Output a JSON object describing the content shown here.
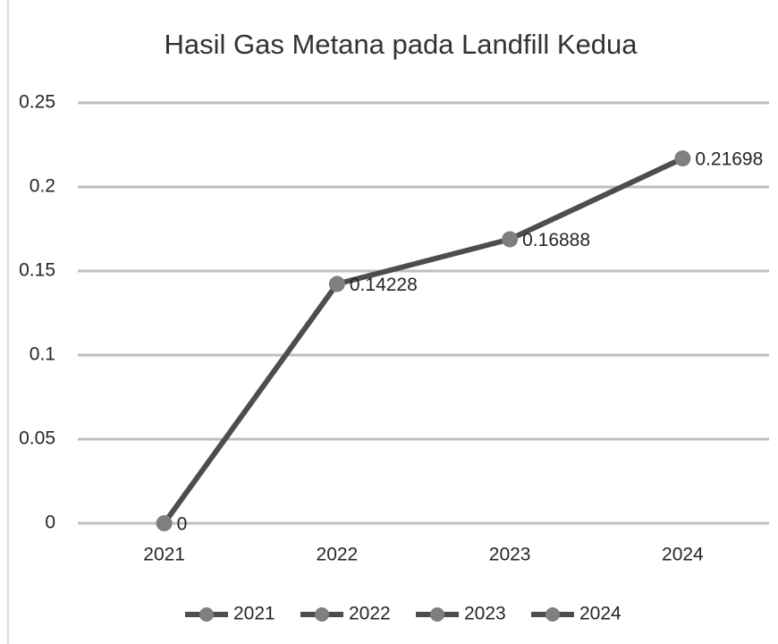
{
  "chart_data": {
    "type": "line",
    "title": "Hasil Gas Metana pada Landfill Kedua",
    "categories": [
      "2021",
      "2022",
      "2023",
      "2024"
    ],
    "values": [
      0,
      0.14228,
      0.16888,
      0.21698
    ],
    "line_color": "#4d4d4d",
    "marker_color": "#7f7f7f",
    "ylim": [
      0,
      0.25
    ],
    "yticks": [
      0,
      0.05,
      0.1,
      0.15,
      0.2,
      0.25
    ],
    "grid": true,
    "legend": {
      "position": "bottom",
      "entries": [
        "2021",
        "2022",
        "2023",
        "2024"
      ]
    }
  }
}
